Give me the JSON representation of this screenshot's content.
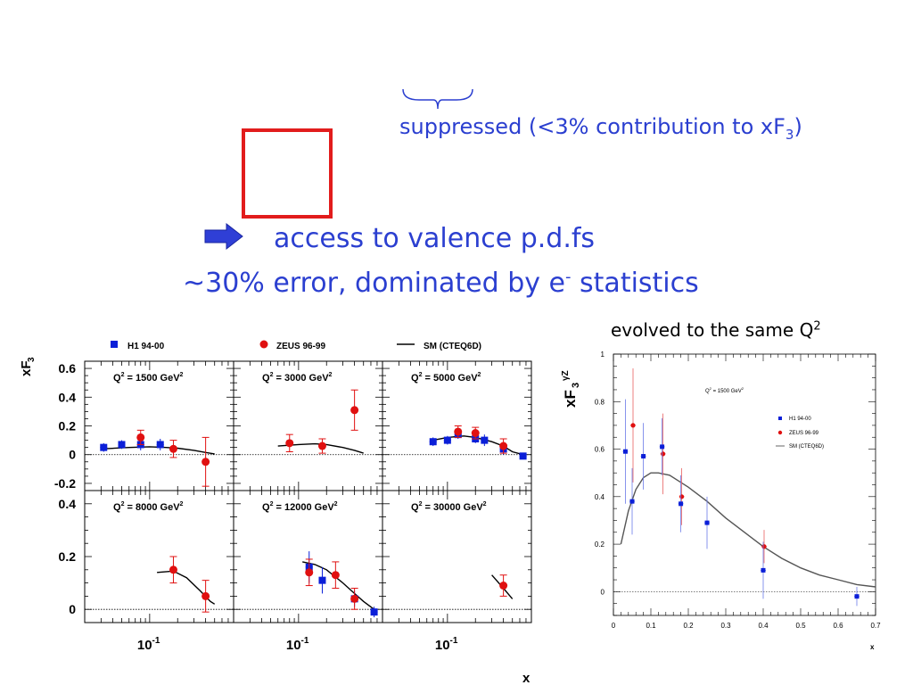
{
  "slide": {
    "suppressed": {
      "main": "suppressed (<3% contribution to xF",
      "sub": "3",
      "close": ")"
    },
    "access": "access to valence p.d.fs",
    "error": {
      "main": "~30% error, dominated by e",
      "sup": "-",
      "rest": " statistics"
    },
    "evolved": {
      "main": "evolved to the same Q",
      "sup": "2"
    }
  },
  "colors": {
    "text_blue": "#2b3fd0",
    "box_red": "#e21c1c",
    "arrow_blue": "#2f3fd6",
    "h1": "#0b1fd8",
    "zeus": "#e01010"
  },
  "chart_data": [
    {
      "type": "scatter",
      "ylabel": "xF3",
      "xlabel": "x",
      "x_tick_label": "10^-1",
      "legend": [
        {
          "name": "H1 94-00",
          "marker": "square",
          "color": "#0b1fd8"
        },
        {
          "name": "ZEUS 96-99",
          "marker": "circle",
          "color": "#e01010"
        },
        {
          "name": "SM (CTEQ6D)",
          "marker": "line",
          "color": "#000000"
        }
      ],
      "panels": [
        {
          "q2": "1500",
          "ylim": [
            -0.25,
            0.65
          ],
          "yticks": [
            "0.6",
            "0.4",
            "0.2",
            "0",
            "-0.2"
          ],
          "ytickvals": [
            0.6,
            0.4,
            0.2,
            0,
            -0.2
          ],
          "h1": [
            {
              "x": 0.032,
              "y": 0.05,
              "e": 0.03
            },
            {
              "x": 0.05,
              "y": 0.07,
              "e": 0.03
            },
            {
              "x": 0.08,
              "y": 0.07,
              "e": 0.04
            },
            {
              "x": 0.13,
              "y": 0.07,
              "e": 0.04
            }
          ],
          "zeus": [
            {
              "x": 0.08,
              "y": 0.12,
              "e": 0.05
            },
            {
              "x": 0.18,
              "y": 0.04,
              "e": 0.06
            },
            {
              "x": 0.4,
              "y": -0.05,
              "e": 0.17
            }
          ],
          "sm": [
            [
              0.03,
              0.04
            ],
            [
              0.06,
              0.05
            ],
            [
              0.1,
              0.055
            ],
            [
              0.15,
              0.05
            ],
            [
              0.2,
              0.045
            ],
            [
              0.3,
              0.03
            ],
            [
              0.4,
              0.015
            ],
            [
              0.5,
              0.005
            ]
          ]
        },
        {
          "q2": "3000",
          "ylim": [
            -0.25,
            0.65
          ],
          "yticks": [],
          "ytickvals": [],
          "h1": [],
          "zeus": [
            {
              "x": 0.08,
              "y": 0.08,
              "e": 0.06
            },
            {
              "x": 0.18,
              "y": 0.06,
              "e": 0.05
            },
            {
              "x": 0.4,
              "y": 0.31,
              "e": 0.14
            }
          ],
          "sm": [
            [
              0.06,
              0.06
            ],
            [
              0.1,
              0.07
            ],
            [
              0.15,
              0.075
            ],
            [
              0.2,
              0.07
            ],
            [
              0.3,
              0.05
            ],
            [
              0.4,
              0.03
            ],
            [
              0.5,
              0.01
            ]
          ]
        },
        {
          "q2": "5000",
          "ylim": [
            -0.25,
            0.65
          ],
          "yticks": [],
          "ytickvals": [],
          "h1": [
            {
              "x": 0.07,
              "y": 0.09,
              "e": 0.03
            },
            {
              "x": 0.1,
              "y": 0.1,
              "e": 0.03
            },
            {
              "x": 0.13,
              "y": 0.14,
              "e": 0.03
            },
            {
              "x": 0.2,
              "y": 0.11,
              "e": 0.03
            },
            {
              "x": 0.25,
              "y": 0.1,
              "e": 0.04
            },
            {
              "x": 0.4,
              "y": 0.04,
              "e": 0.04
            },
            {
              "x": 0.65,
              "y": -0.01,
              "e": 0.02
            }
          ],
          "zeus": [
            {
              "x": 0.13,
              "y": 0.16,
              "e": 0.04
            },
            {
              "x": 0.2,
              "y": 0.15,
              "e": 0.04
            },
            {
              "x": 0.4,
              "y": 0.06,
              "e": 0.05
            }
          ],
          "sm": [
            [
              0.07,
              0.1
            ],
            [
              0.1,
              0.12
            ],
            [
              0.15,
              0.13
            ],
            [
              0.2,
              0.12
            ],
            [
              0.3,
              0.09
            ],
            [
              0.4,
              0.06
            ],
            [
              0.5,
              0.02
            ],
            [
              0.65,
              0.0
            ]
          ]
        },
        {
          "q2": "8000",
          "ylim": [
            -0.05,
            0.45
          ],
          "yticks": [
            "0.4",
            "0.2",
            "0"
          ],
          "ytickvals": [
            0.4,
            0.2,
            0
          ],
          "h1": [],
          "zeus": [
            {
              "x": 0.18,
              "y": 0.15,
              "e": 0.05
            },
            {
              "x": 0.4,
              "y": 0.05,
              "e": 0.06
            }
          ],
          "sm": [
            [
              0.12,
              0.14
            ],
            [
              0.18,
              0.145
            ],
            [
              0.25,
              0.12
            ],
            [
              0.35,
              0.07
            ],
            [
              0.45,
              0.03
            ],
            [
              0.5,
              0.02
            ]
          ]
        },
        {
          "q2": "12000",
          "ylim": [
            -0.05,
            0.45
          ],
          "yticks": [],
          "ytickvals": [],
          "h1": [
            {
              "x": 0.13,
              "y": 0.16,
              "e": 0.06
            },
            {
              "x": 0.18,
              "y": 0.11,
              "e": 0.05
            },
            {
              "x": 0.4,
              "y": 0.04,
              "e": 0.03
            },
            {
              "x": 0.65,
              "y": -0.01,
              "e": 0.02
            }
          ],
          "zeus": [
            {
              "x": 0.13,
              "y": 0.14,
              "e": 0.05
            },
            {
              "x": 0.25,
              "y": 0.13,
              "e": 0.05
            },
            {
              "x": 0.4,
              "y": 0.04,
              "e": 0.04
            }
          ],
          "sm": [
            [
              0.11,
              0.18
            ],
            [
              0.15,
              0.17
            ],
            [
              0.2,
              0.15
            ],
            [
              0.3,
              0.1
            ],
            [
              0.4,
              0.06
            ],
            [
              0.5,
              0.03
            ],
            [
              0.65,
              0.0
            ]
          ]
        },
        {
          "q2": "30000",
          "ylim": [
            -0.05,
            0.45
          ],
          "yticks": [],
          "ytickvals": [],
          "h1": [],
          "zeus": [
            {
              "x": 0.4,
              "y": 0.09,
              "e": 0.04
            }
          ],
          "sm": [
            [
              0.3,
              0.13
            ],
            [
              0.4,
              0.08
            ],
            [
              0.5,
              0.04
            ]
          ]
        }
      ]
    },
    {
      "type": "scatter",
      "ylabel": "xF3",
      "ylabel_sup": "γZ",
      "xlabel": "x",
      "annotation": "Q2 = 1500 GeV2",
      "xlim": [
        0,
        0.7
      ],
      "ylim": [
        -0.1,
        1.0
      ],
      "xticks": [
        0,
        0.1,
        0.2,
        0.3,
        0.4,
        0.5,
        0.6,
        0.7
      ],
      "yticks": [
        0,
        0.2,
        0.4,
        0.6,
        0.8,
        1
      ],
      "legend": [
        {
          "name": "H1 94-00",
          "marker": "square",
          "color": "#0b1fd8"
        },
        {
          "name": "ZEUS 96-99",
          "marker": "circle",
          "color": "#e01010"
        },
        {
          "name": "SM (CTEQ6D)",
          "marker": "line",
          "color": "#666666"
        }
      ],
      "h1": [
        {
          "x": 0.032,
          "y": 0.59,
          "e": 0.22
        },
        {
          "x": 0.05,
          "y": 0.38,
          "e": 0.14
        },
        {
          "x": 0.08,
          "y": 0.57,
          "e": 0.14
        },
        {
          "x": 0.13,
          "y": 0.61,
          "e": 0.12
        },
        {
          "x": 0.18,
          "y": 0.37,
          "e": 0.12
        },
        {
          "x": 0.25,
          "y": 0.29,
          "e": 0.11
        },
        {
          "x": 0.4,
          "y": 0.09,
          "e": 0.12
        },
        {
          "x": 0.65,
          "y": -0.02,
          "e": 0.04
        }
      ],
      "zeus": [
        {
          "x": 0.05,
          "y": 0.7,
          "e": 0.24
        },
        {
          "x": 0.13,
          "y": 0.58,
          "e": 0.17
        },
        {
          "x": 0.18,
          "y": 0.4,
          "e": 0.12
        },
        {
          "x": 0.4,
          "y": 0.19,
          "e": 0.07
        }
      ],
      "sm": [
        [
          0.02,
          0.2
        ],
        [
          0.04,
          0.34
        ],
        [
          0.06,
          0.43
        ],
        [
          0.08,
          0.48
        ],
        [
          0.1,
          0.5
        ],
        [
          0.12,
          0.5
        ],
        [
          0.15,
          0.49
        ],
        [
          0.2,
          0.44
        ],
        [
          0.25,
          0.38
        ],
        [
          0.3,
          0.31
        ],
        [
          0.35,
          0.25
        ],
        [
          0.4,
          0.19
        ],
        [
          0.45,
          0.14
        ],
        [
          0.5,
          0.1
        ],
        [
          0.55,
          0.07
        ],
        [
          0.6,
          0.05
        ],
        [
          0.65,
          0.03
        ],
        [
          0.7,
          0.02
        ]
      ]
    }
  ]
}
